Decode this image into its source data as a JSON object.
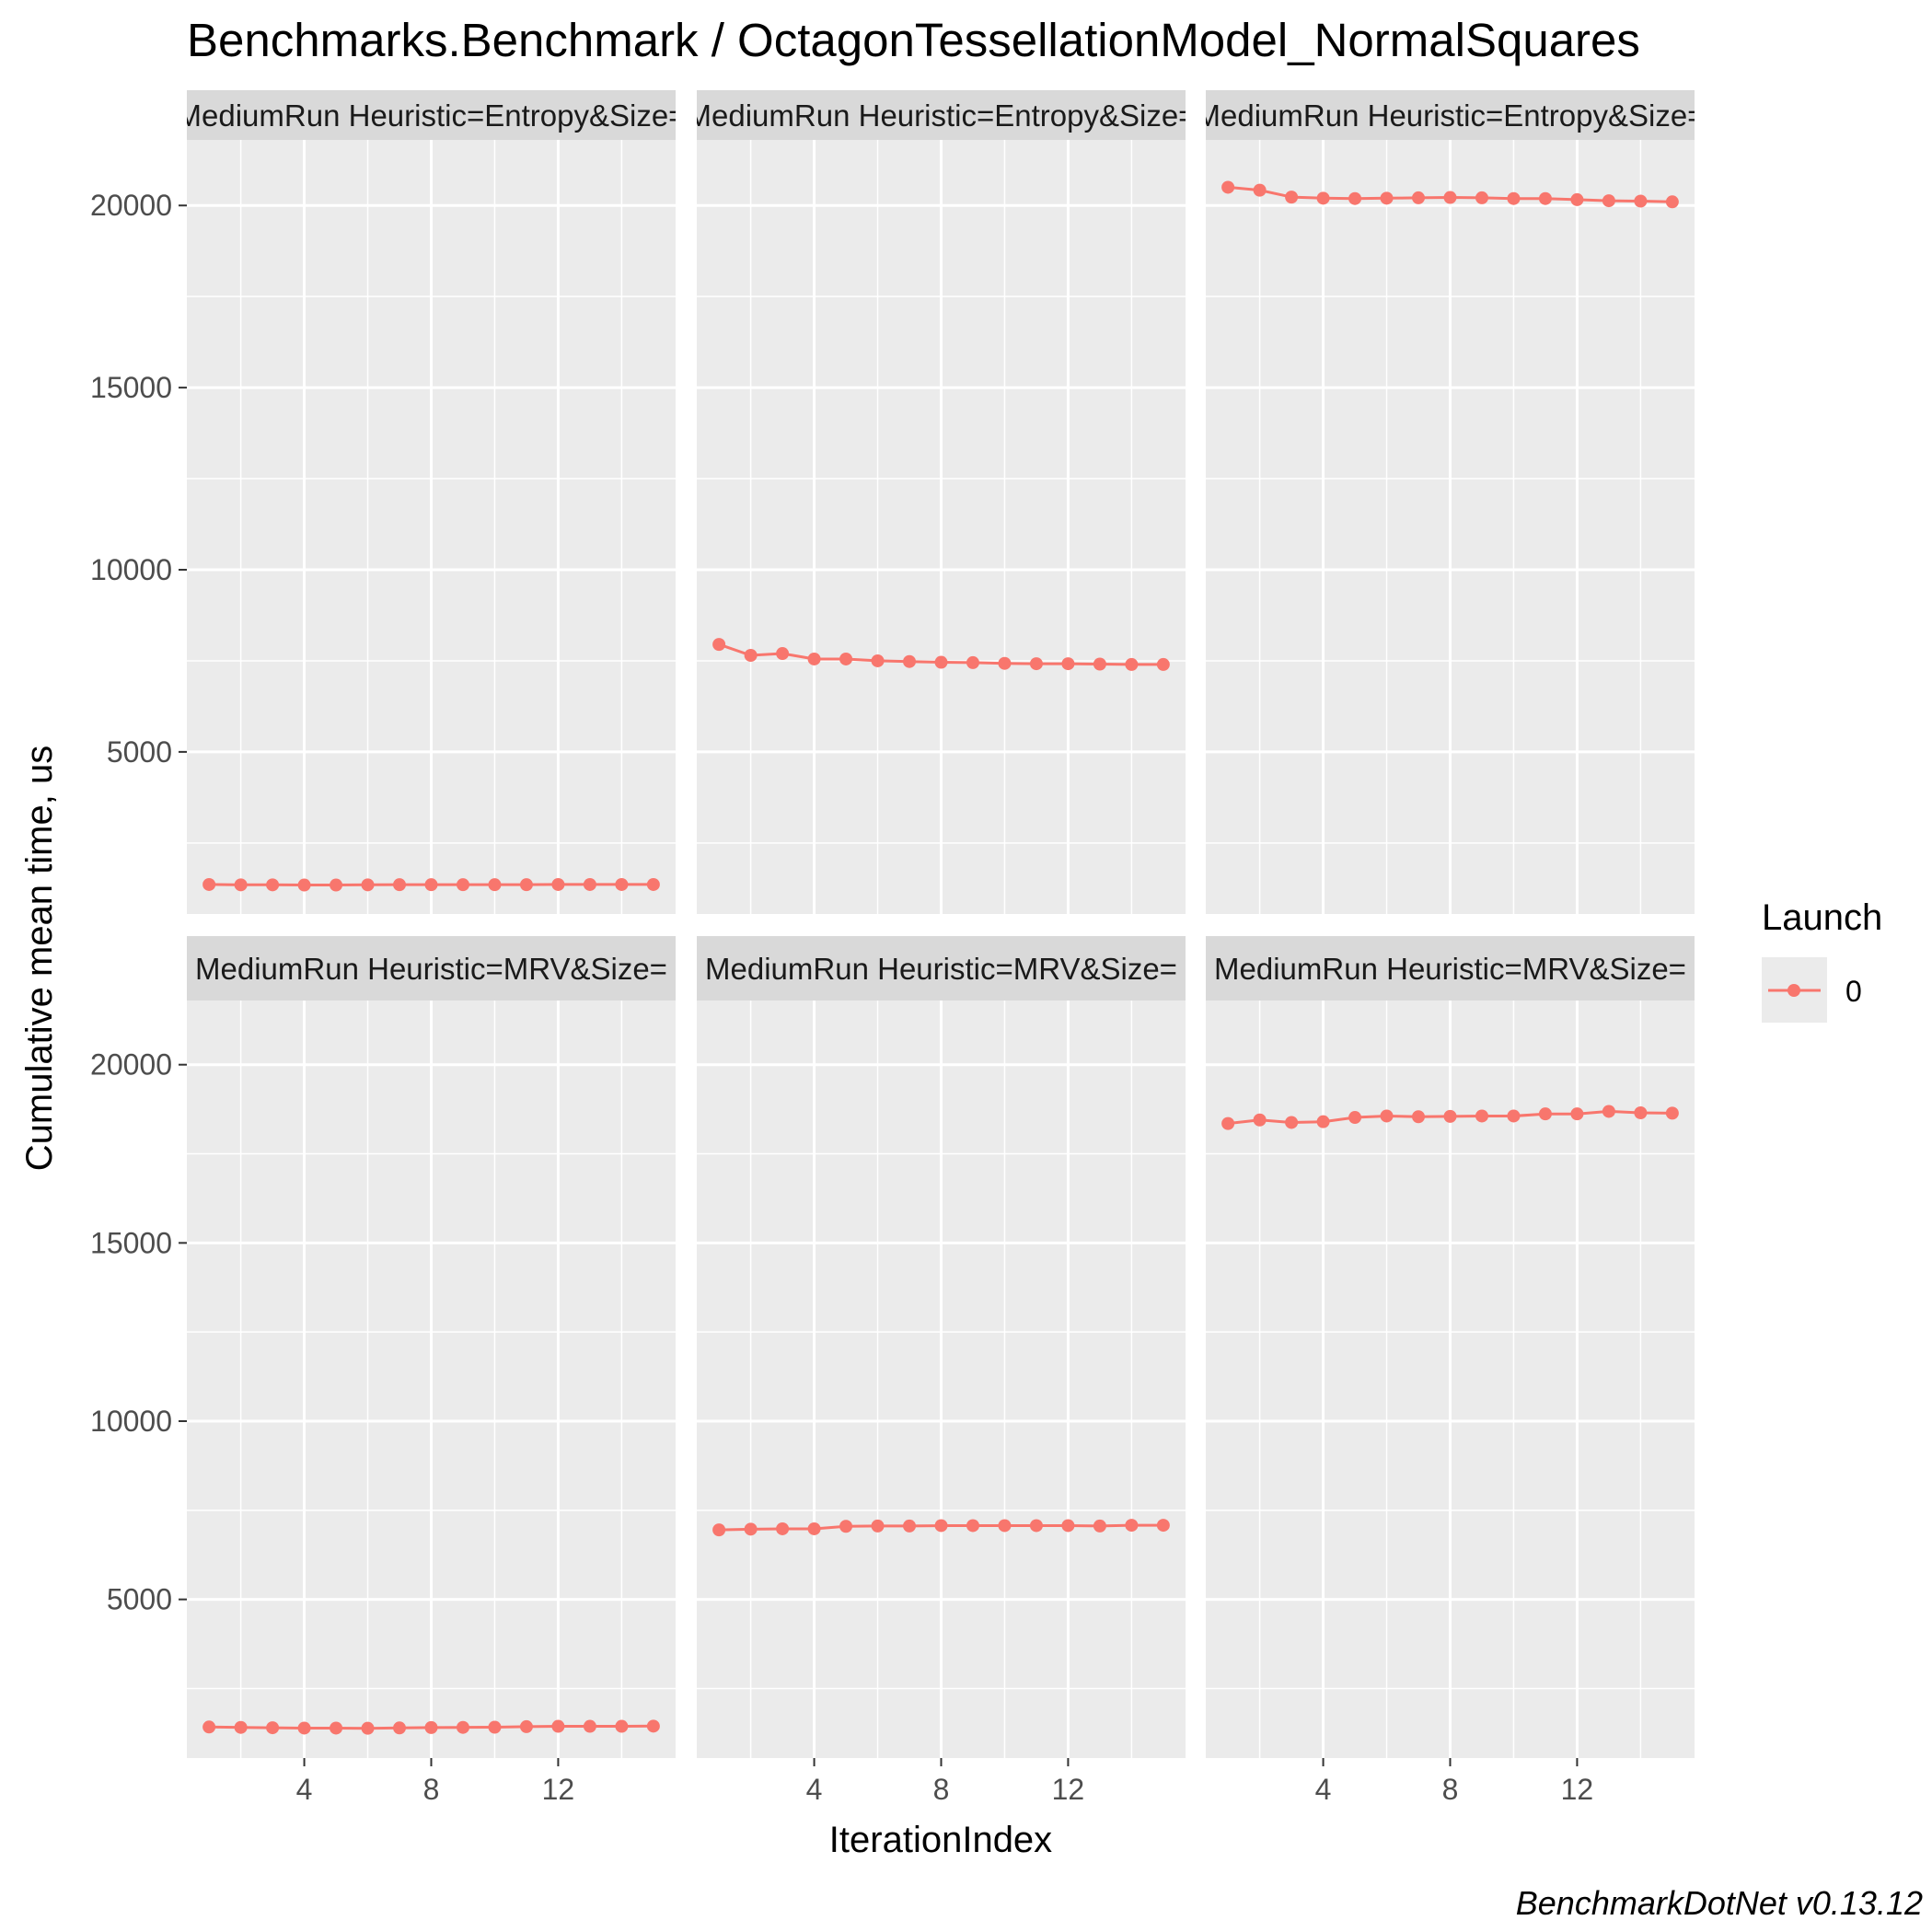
{
  "chart_data": {
    "type": "line",
    "title": "Benchmarks.Benchmark / OctagonTessellationModel_NormalSquares",
    "xlabel": "IterationIndex",
    "ylabel": "Cumulative mean time, us",
    "caption": "BenchmarkDotNet v0.13.12",
    "x_ticks": [
      4,
      8,
      12
    ],
    "y_ticks": [
      5000,
      10000,
      15000,
      20000
    ],
    "y_tick_labels": [
      "5000",
      "10000",
      "15000",
      "20000"
    ],
    "x_tick_labels": [
      "4",
      "8",
      "12"
    ],
    "xlim": [
      0.3,
      15.7
    ],
    "ylim": [
      550,
      21800
    ],
    "grid": true,
    "legend": {
      "title": "Launch",
      "position": "right",
      "entries": [
        {
          "label": "0",
          "color": "#F8766D"
        }
      ]
    },
    "series_color": "#F8766D",
    "panels": [
      {
        "strip": "MediumRun Heuristic=Entropy&Size=",
        "series": [
          {
            "name": "0",
            "x": [
              1,
              2,
              3,
              4,
              5,
              6,
              7,
              8,
              9,
              10,
              11,
              12,
              13,
              14,
              15
            ],
            "y": [
              1360,
              1350,
              1350,
              1345,
              1345,
              1350,
              1355,
              1355,
              1355,
              1355,
              1355,
              1360,
              1360,
              1360,
              1360
            ]
          }
        ]
      },
      {
        "strip": "MediumRun Heuristic=Entropy&Size=",
        "series": [
          {
            "name": "0",
            "x": [
              1,
              2,
              3,
              4,
              5,
              6,
              7,
              8,
              9,
              10,
              11,
              12,
              13,
              14,
              15
            ],
            "y": [
              7950,
              7650,
              7700,
              7550,
              7550,
              7500,
              7480,
              7460,
              7450,
              7430,
              7420,
              7420,
              7410,
              7400,
              7400
            ]
          }
        ]
      },
      {
        "strip": "MediumRun Heuristic=Entropy&Size=",
        "series": [
          {
            "name": "0",
            "x": [
              1,
              2,
              3,
              4,
              5,
              6,
              7,
              8,
              9,
              10,
              11,
              12,
              13,
              14,
              15
            ],
            "y": [
              20500,
              20420,
              20230,
              20200,
              20190,
              20200,
              20210,
              20220,
              20210,
              20190,
              20190,
              20160,
              20130,
              20120,
              20100
            ]
          }
        ]
      },
      {
        "strip": "MediumRun Heuristic=MRV&Size=",
        "series": [
          {
            "name": "0",
            "x": [
              1,
              2,
              3,
              4,
              5,
              6,
              7,
              8,
              9,
              10,
              11,
              12,
              13,
              14,
              15
            ],
            "y": [
              1420,
              1410,
              1400,
              1390,
              1390,
              1385,
              1395,
              1405,
              1410,
              1415,
              1430,
              1440,
              1440,
              1440,
              1445
            ]
          }
        ]
      },
      {
        "strip": "MediumRun Heuristic=MRV&Size=",
        "series": [
          {
            "name": "0",
            "x": [
              1,
              2,
              3,
              4,
              5,
              6,
              7,
              8,
              9,
              10,
              11,
              12,
              13,
              14,
              15
            ],
            "y": [
              6950,
              6970,
              6980,
              6980,
              7050,
              7060,
              7060,
              7070,
              7070,
              7070,
              7070,
              7070,
              7060,
              7080,
              7080
            ]
          }
        ]
      },
      {
        "strip": "MediumRun Heuristic=MRV&Size=",
        "series": [
          {
            "name": "0",
            "x": [
              1,
              2,
              3,
              4,
              5,
              6,
              7,
              8,
              9,
              10,
              11,
              12,
              13,
              14,
              15
            ],
            "y": [
              18350,
              18450,
              18380,
              18400,
              18520,
              18560,
              18540,
              18550,
              18560,
              18560,
              18620,
              18620,
              18690,
              18650,
              18640
            ]
          }
        ]
      }
    ]
  }
}
